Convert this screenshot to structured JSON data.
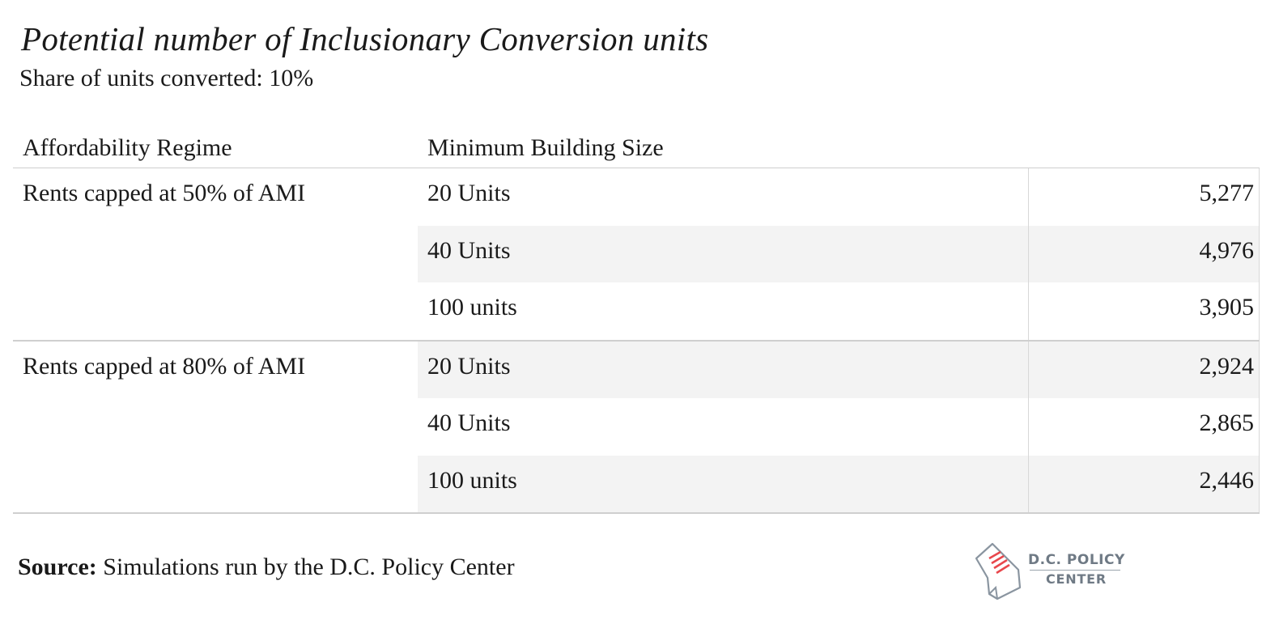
{
  "title": "Potential number of Inclusionary Conversion units",
  "subtitle": "Share of units converted: 10%",
  "table": {
    "headers": {
      "regime": "Affordability Regime",
      "size": "Minimum Building Size"
    },
    "groups": [
      {
        "regime": "Rents capped at 50% of AMI",
        "rows": [
          {
            "size": "20 Units",
            "value": "5,277"
          },
          {
            "size": "40 Units",
            "value": "4,976"
          },
          {
            "size": "100 units",
            "value": "3,905"
          }
        ]
      },
      {
        "regime": "Rents capped at 80% of AMI",
        "rows": [
          {
            "size": "20 Units",
            "value": "2,924"
          },
          {
            "size": "40 Units",
            "value": "2,865"
          },
          {
            "size": "100 units",
            "value": "2,446"
          }
        ]
      }
    ]
  },
  "chart_data": {
    "type": "table",
    "title": "Potential number of Inclusionary Conversion units",
    "subtitle": "Share of units converted: 10%",
    "columns": [
      "Affordability Regime",
      "Minimum Building Size",
      ""
    ],
    "rows": [
      [
        "Rents capped at 50% of AMI",
        "20 Units",
        5277
      ],
      [
        "Rents capped at 50% of AMI",
        "40 Units",
        4976
      ],
      [
        "Rents capped at 50% of AMI",
        "100 units",
        3905
      ],
      [
        "Rents capped at 80% of AMI",
        "20 Units",
        2924
      ],
      [
        "Rents capped at 80% of AMI",
        "40 Units",
        2865
      ],
      [
        "Rents capped at 80% of AMI",
        "100 units",
        2446
      ]
    ]
  },
  "source": {
    "label": "Source:",
    "text": "Simulations run by the D.C. Policy Center"
  },
  "logo": {
    "line1": "D.C. POLICY",
    "line2": "CENTER",
    "accent_color": "#e8474c",
    "text_color": "#6f7a85",
    "icon": "dc-map-document-icon"
  }
}
